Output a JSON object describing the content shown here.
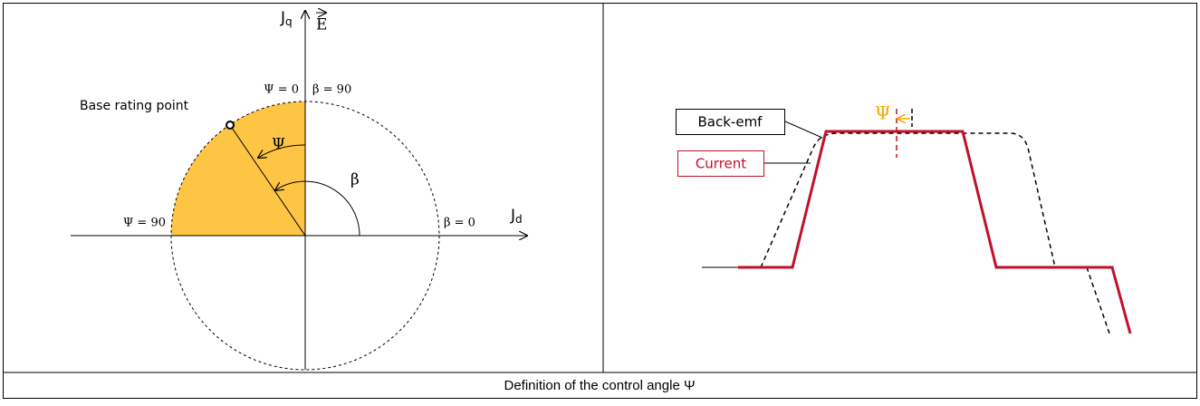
{
  "left": {
    "axis_q": {
      "letter": "J",
      "sub": "q"
    },
    "axis_e": "E",
    "axis_d": {
      "letter": "J",
      "sub": "d"
    },
    "psi_zero": "Ψ = 0",
    "beta_ninety": "β = 90",
    "base_point": "Base rating point",
    "psi_angle": "Ψ",
    "beta_angle": "β",
    "psi_ninety": "Ψ = 90",
    "beta_zero": "β = 0"
  },
  "right": {
    "psi_label": "Ψ",
    "back_emf": "Back-emf",
    "current": "Current"
  },
  "caption": "Definition of the control angle Ψ"
}
